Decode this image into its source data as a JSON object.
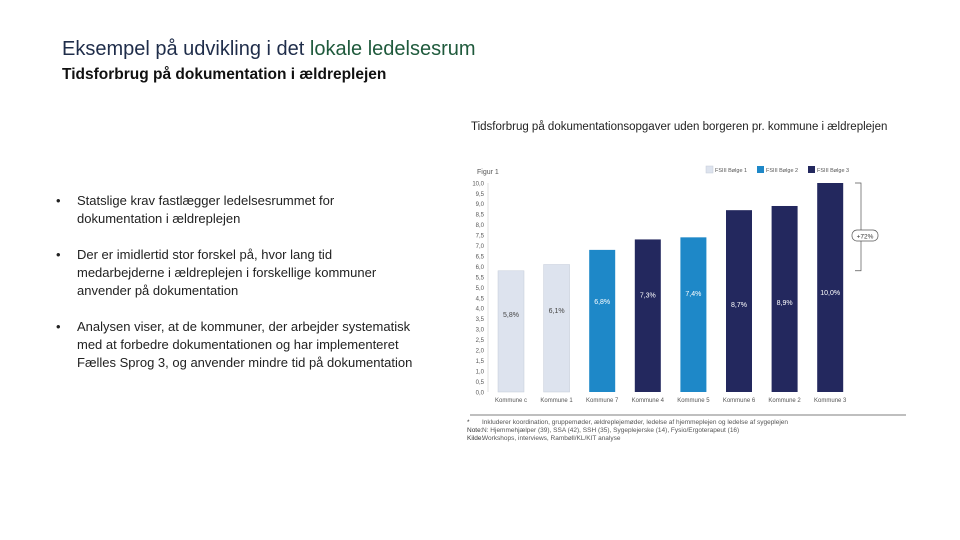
{
  "header": {
    "title_part1": "Eksempel på udvikling i det ",
    "title_part2": "lokale ledelsesrum",
    "subtitle": "Tidsforbrug på dokumentation i ældreplejen"
  },
  "bullets": [
    "Statslige krav fastlægger ledelsesrummet for dokumentation i ældreplejen",
    "Der er imidlertid stor forskel på, hvor lang tid medarbejderne i ældreplejen i forskellige kommuner anvender på dokumentation",
    "Analysen viser, at de kommuner, der arbejder systematisk med at forbedre dokumentationen og har implementeret Fælles Sprog 3, og anvender mindre tid på dokumentation"
  ],
  "chart_data": {
    "type": "bar",
    "title": "Tidsforbrug på dokumentationsopgaver uden borgeren pr. kommune i ældreplejen",
    "ylabel": "Figur 1",
    "ylim": [
      0,
      10
    ],
    "yticks": [
      "10,0",
      "9,5",
      "9,0",
      "8,5",
      "8,0",
      "7,5",
      "7,0",
      "6,5",
      "6,0",
      "5,5",
      "5,0",
      "4,5",
      "4,0",
      "3,5",
      "3,0",
      "2,5",
      "2,0",
      "1,5",
      "1,0",
      "0,5",
      "0,0"
    ],
    "categories": [
      "Kommune c",
      "Kommune 1",
      "Kommune 7",
      "Kommune 4",
      "Kommune 5",
      "Kommune 6",
      "Kommune 2",
      "Kommune 3"
    ],
    "values": [
      5.8,
      6.1,
      6.8,
      7.3,
      7.4,
      8.7,
      8.9,
      10.0
    ],
    "labels": [
      "5,8%",
      "6,1%",
      "6,8%",
      "7,3%",
      "7,4%",
      "8,7%",
      "8,9%",
      "10,0%"
    ],
    "stage": [
      1,
      1,
      2,
      3,
      2,
      3,
      3,
      3
    ],
    "legend": [
      "FSIII Bølge 1",
      "FSIII Bølge 2",
      "FSIII Bølge 3"
    ],
    "colors": [
      "#dde3ee",
      "#1e88c8",
      "#23285e"
    ],
    "annotation": "+72%"
  },
  "notes": [
    {
      "key": "*",
      "text": "Inkluderer koordination, gruppemøder, ældreplejemøder, ledelse af hjemmeplejen og ledelse af sygeplejen"
    },
    {
      "key": "Note:",
      "text": "N: Hjemmehjælper (39), SSA (42), SSH (35), Sygeplejerske (14), Fysio/Ergoterapeut (16)"
    },
    {
      "key": "Kilde:",
      "text": "Workshops, interviews, Rambøll/KL/KIT analyse"
    }
  ]
}
